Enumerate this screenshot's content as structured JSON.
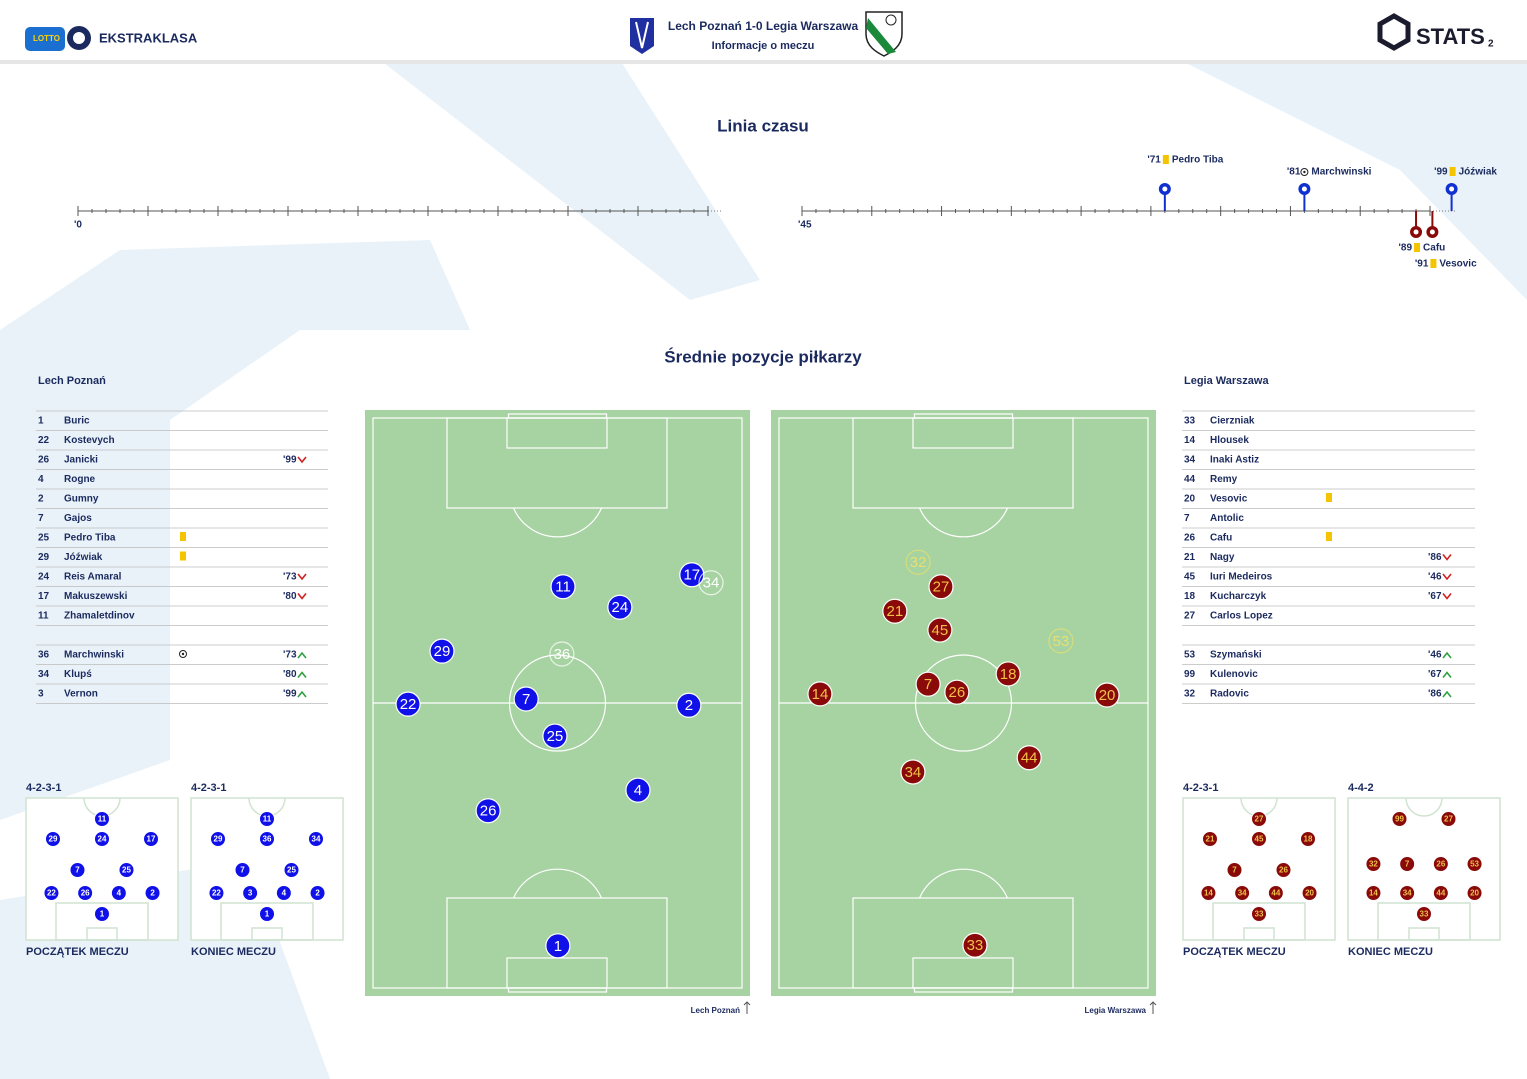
{
  "header": {
    "logo_text": "LOTTO",
    "brand": "EKSTRAKLASA",
    "title": "Lech Poznań 1-0 Legia Warszawa",
    "subtitle": "Informacje o meczu",
    "stats": "STATS",
    "page": "2"
  },
  "timeline": {
    "title": "Linia czasu",
    "halves": [
      {
        "label": "'0",
        "start": 0,
        "end": 45
      },
      {
        "label": "'45",
        "start": 45,
        "end": 90
      }
    ],
    "home_events": [
      {
        "minute": 71,
        "label": "'71",
        "player": "Pedro Tiba",
        "event": "yellow"
      },
      {
        "minute": 81,
        "label": "'81",
        "player": "Marchwinski",
        "event": "goal"
      },
      {
        "minute": 99,
        "label": "'99",
        "player": "Jóźwiak",
        "event": "yellow"
      }
    ],
    "away_events": [
      {
        "minute": 89,
        "label": "'89",
        "player": "Cafu",
        "event": "yellow"
      },
      {
        "minute": 91,
        "label": "'91",
        "player": "Vesovic",
        "event": "yellow"
      }
    ]
  },
  "positions_title": "Średnie pozycje piłkarzy",
  "home": {
    "name": "Lech Poznań",
    "color": "#1010e8",
    "text_color": "#ffffff",
    "faded_color": "#ffffff",
    "starters": [
      {
        "number": "1",
        "name": "Buric"
      },
      {
        "number": "22",
        "name": "Kostevych"
      },
      {
        "number": "26",
        "name": "Janicki",
        "out": "'99"
      },
      {
        "number": "4",
        "name": "Rogne"
      },
      {
        "number": "2",
        "name": "Gumny"
      },
      {
        "number": "7",
        "name": "Gajos"
      },
      {
        "number": "25",
        "name": "Pedro Tiba",
        "yellow": true
      },
      {
        "number": "29",
        "name": "Jóźwiak",
        "yellow": true
      },
      {
        "number": "24",
        "name": "Reis Amaral",
        "out": "'73"
      },
      {
        "number": "17",
        "name": "Makuszewski",
        "out": "'80"
      },
      {
        "number": "11",
        "name": "Zhamaletdinov"
      }
    ],
    "subs": [
      {
        "number": "36",
        "name": "Marchwinski",
        "goal": true,
        "in": "'73"
      },
      {
        "number": "34",
        "name": "Klupś",
        "in": "'80"
      },
      {
        "number": "3",
        "name": "Vernon",
        "in": "'99"
      }
    ],
    "positions": [
      {
        "number": "11",
        "x": 51.5,
        "y": 29.6
      },
      {
        "number": "17",
        "x": 86.4,
        "y": 27.5
      },
      {
        "number": "34",
        "x": 91.6,
        "y": 28.9,
        "sub": true
      },
      {
        "number": "24",
        "x": 66.9,
        "y": 33.2
      },
      {
        "number": "29",
        "x": 18.7,
        "y": 40.9
      },
      {
        "number": "36",
        "x": 51.2,
        "y": 41.4,
        "sub": true
      },
      {
        "number": "22",
        "x": 9.5,
        "y": 50.2
      },
      {
        "number": "7",
        "x": 41.5,
        "y": 49.3
      },
      {
        "number": "2",
        "x": 85.6,
        "y": 50.4
      },
      {
        "number": "25",
        "x": 49.3,
        "y": 55.8
      },
      {
        "number": "4",
        "x": 71.8,
        "y": 65.3
      },
      {
        "number": "26",
        "x": 31.2,
        "y": 68.9
      },
      {
        "number": "1",
        "x": 50.1,
        "y": 92.6
      }
    ],
    "formations": [
      {
        "label": "4-2-3-1",
        "caption": "POCZĄTEK MECZU",
        "rows": [
          [
            "11"
          ],
          [
            "29",
            "24",
            "17"
          ],
          [
            "7",
            "25"
          ],
          [
            "22",
            "26",
            "4",
            "2"
          ],
          [
            "1"
          ]
        ]
      },
      {
        "label": "4-2-3-1",
        "caption": "KONIEC MECZU",
        "rows": [
          [
            "11"
          ],
          [
            "29",
            "36",
            "34"
          ],
          [
            "7",
            "25"
          ],
          [
            "22",
            "3",
            "4",
            "2"
          ],
          [
            "1"
          ]
        ]
      }
    ]
  },
  "away": {
    "name": "Legia Warszawa",
    "color": "#8a0a0a",
    "text_color": "#f0c048",
    "faded_color": "#e8e070",
    "starters": [
      {
        "number": "33",
        "name": "Cierzniak"
      },
      {
        "number": "14",
        "name": "Hlousek"
      },
      {
        "number": "34",
        "name": "Inaki Astiz"
      },
      {
        "number": "44",
        "name": "Remy"
      },
      {
        "number": "20",
        "name": "Vesovic",
        "yellow": true
      },
      {
        "number": "7",
        "name": "Antolic"
      },
      {
        "number": "26",
        "name": "Cafu",
        "yellow": true
      },
      {
        "number": "21",
        "name": "Nagy",
        "out": "'86"
      },
      {
        "number": "45",
        "name": "Iuri Medeiros",
        "out": "'46"
      },
      {
        "number": "18",
        "name": "Kucharczyk",
        "out": "'67"
      },
      {
        "number": "27",
        "name": "Carlos Lopez"
      }
    ],
    "subs": [
      {
        "number": "53",
        "name": "Szymański",
        "in": "'46"
      },
      {
        "number": "99",
        "name": "Kulenovic",
        "in": "'67"
      },
      {
        "number": "32",
        "name": "Radovic",
        "in": "'86"
      }
    ],
    "positions": [
      {
        "number": "32",
        "x": 37.7,
        "y": 25.3,
        "sub": true
      },
      {
        "number": "27",
        "x": 43.9,
        "y": 29.6
      },
      {
        "number": "21",
        "x": 31.4,
        "y": 33.9
      },
      {
        "number": "45",
        "x": 43.6,
        "y": 37.2
      },
      {
        "number": "53",
        "x": 76.4,
        "y": 39.1,
        "sub": true
      },
      {
        "number": "18",
        "x": 62.1,
        "y": 44.9
      },
      {
        "number": "7",
        "x": 40.4,
        "y": 46.7
      },
      {
        "number": "26",
        "x": 48.2,
        "y": 48.1
      },
      {
        "number": "14",
        "x": 11.1,
        "y": 48.4
      },
      {
        "number": "20",
        "x": 88.9,
        "y": 48.6
      },
      {
        "number": "44",
        "x": 67.8,
        "y": 59.6
      },
      {
        "number": "34",
        "x": 36.3,
        "y": 62.1
      },
      {
        "number": "33",
        "x": 53.1,
        "y": 92.5
      }
    ],
    "formations": [
      {
        "label": "4-2-3-1",
        "caption": "POCZĄTEK MECZU",
        "rows": [
          [
            "27"
          ],
          [
            "21",
            "45",
            "18"
          ],
          [
            "7",
            "26"
          ],
          [
            "14",
            "34",
            "44",
            "20"
          ],
          [
            "33"
          ]
        ]
      },
      {
        "label": "4-4-2",
        "caption": "KONIEC MECZU",
        "rows": [
          [
            "99",
            "27"
          ],
          [
            "32",
            "7",
            "26",
            "53"
          ],
          [
            "14",
            "34",
            "44",
            "20"
          ],
          [
            "33"
          ]
        ]
      }
    ]
  }
}
